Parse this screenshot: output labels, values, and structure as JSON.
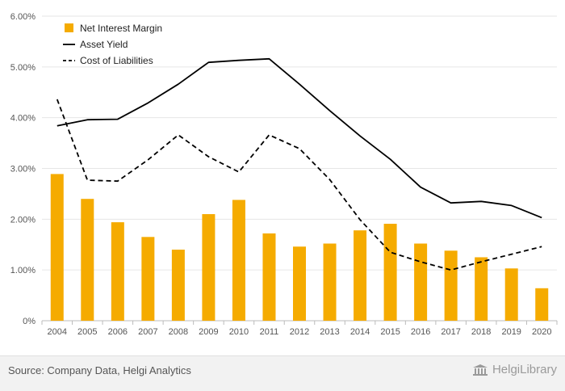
{
  "chart_data": {
    "type": "bar",
    "title": "",
    "xlabel": "",
    "ylabel": "",
    "categories": [
      "2004",
      "2005",
      "2006",
      "2007",
      "2008",
      "2009",
      "2010",
      "2011",
      "2012",
      "2013",
      "2014",
      "2015",
      "2016",
      "2017",
      "2018",
      "2019",
      "2020"
    ],
    "ylim": [
      0,
      0.06
    ],
    "yticks": [
      "0%",
      "1.00%",
      "2.00%",
      "3.00%",
      "4.00%",
      "5.00%",
      "6.00%"
    ],
    "grid": true,
    "legend_position": "top-left",
    "series": [
      {
        "name": "Net Interest Margin",
        "kind": "bar",
        "color": "#f5ab00",
        "values": [
          0.0289,
          0.024,
          0.0194,
          0.0165,
          0.014,
          0.021,
          0.0238,
          0.0172,
          0.0146,
          0.0152,
          0.0178,
          0.0191,
          0.0152,
          0.0138,
          0.0125,
          0.0103,
          0.0064
        ]
      },
      {
        "name": "Asset Yield",
        "kind": "line",
        "style": "solid",
        "color": "#000000",
        "values": [
          0.0384,
          0.0396,
          0.0397,
          0.0429,
          0.0466,
          0.0509,
          0.0513,
          0.0516,
          0.0466,
          0.0414,
          0.0364,
          0.0318,
          0.0263,
          0.0232,
          0.0235,
          0.0227,
          0.0203
        ]
      },
      {
        "name": "Cost of Liabilities",
        "kind": "line",
        "style": "dashed",
        "color": "#000000",
        "values": [
          0.0436,
          0.0277,
          0.0275,
          0.0317,
          0.0366,
          0.0323,
          0.0293,
          0.0366,
          0.0339,
          0.0278,
          0.0199,
          0.0135,
          0.0116,
          0.01,
          0.0116,
          0.0131,
          0.0146
        ]
      }
    ]
  },
  "footer": {
    "source": "Source: Company Data, Helgi Analytics",
    "brand": "HelgiLibrary",
    "brand_icon": "library-building-icon"
  }
}
